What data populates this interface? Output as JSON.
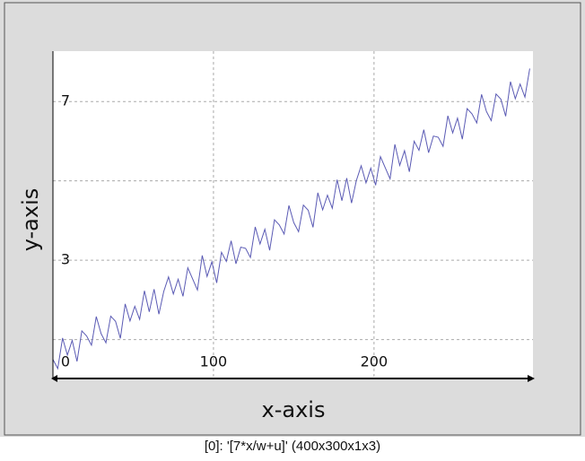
{
  "chart_data": {
    "type": "line",
    "xlabel": "x-axis",
    "ylabel": "y-axis",
    "caption": "[0]: '[7*x/w+u]' (400x300x1x3)",
    "x": [
      0,
      3,
      6,
      9,
      12,
      15,
      18,
      21,
      24,
      27,
      30,
      33,
      36,
      39,
      42,
      45,
      48,
      51,
      54,
      57,
      60,
      63,
      66,
      69,
      72,
      75,
      78,
      81,
      84,
      87,
      90,
      93,
      96,
      99,
      102,
      105,
      108,
      111,
      114,
      117,
      120,
      123,
      126,
      129,
      132,
      135,
      138,
      141,
      144,
      147,
      150,
      153,
      156,
      159,
      162,
      165,
      168,
      171,
      174,
      177,
      180,
      183,
      186,
      189,
      192,
      195,
      198,
      201,
      204,
      207,
      210,
      213,
      216,
      219,
      222,
      225,
      228,
      231,
      234,
      237,
      240,
      243,
      246,
      249,
      252,
      255,
      258,
      261,
      264,
      267,
      270,
      273,
      276,
      279,
      282,
      285,
      288,
      291,
      294,
      297
    ],
    "series": [
      {
        "color": "#5a5ab4",
        "values": [
          0.5,
          0.27,
          1.04,
          0.61,
          0.98,
          0.45,
          1.22,
          1.09,
          0.86,
          1.58,
          1.15,
          0.92,
          1.59,
          1.46,
          1.03,
          1.9,
          1.47,
          1.84,
          1.51,
          2.23,
          1.7,
          2.27,
          1.64,
          2.21,
          2.58,
          2.15,
          2.52,
          2.09,
          2.81,
          2.53,
          2.25,
          3.12,
          2.59,
          2.96,
          2.43,
          3.2,
          2.97,
          3.49,
          2.91,
          3.33,
          3.3,
          3.07,
          3.84,
          3.41,
          3.78,
          3.25,
          4.02,
          3.89,
          3.66,
          4.38,
          3.95,
          3.72,
          4.39,
          4.26,
          3.83,
          4.7,
          4.27,
          4.64,
          4.31,
          5.03,
          4.5,
          5.07,
          4.44,
          5.01,
          5.38,
          4.95,
          5.32,
          4.89,
          5.61,
          5.33,
          5.05,
          5.92,
          5.39,
          5.76,
          5.23,
          6.0,
          5.77,
          6.29,
          5.71,
          6.13,
          6.1,
          5.87,
          6.64,
          6.21,
          6.58,
          6.05,
          6.82,
          6.69,
          6.46,
          7.18,
          6.75,
          6.52,
          7.19,
          7.06,
          6.63,
          7.5,
          7.07,
          7.44,
          7.11,
          7.83
        ]
      }
    ],
    "xlim": [
      0,
      299
    ],
    "ylim": [
      0.02,
      8.27
    ],
    "xticks": [
      0,
      100,
      200
    ],
    "yticks": [
      3,
      7
    ],
    "ygrid": [
      1,
      5
    ],
    "grid": true
  }
}
